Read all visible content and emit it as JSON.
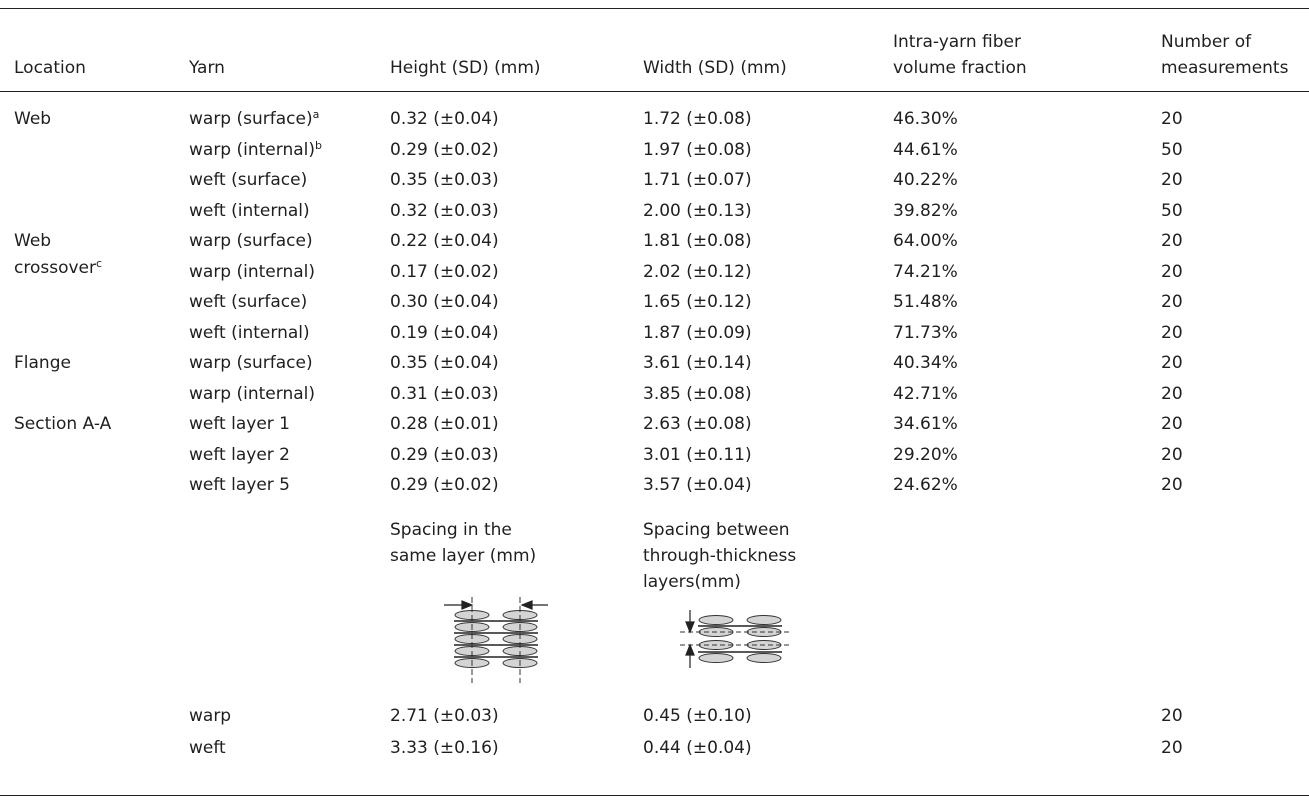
{
  "table": {
    "headers": {
      "location": "Location",
      "yarn": "Yarn",
      "height": "Height (SD) (mm)",
      "width": "Width (SD) (mm)",
      "vf_line1": "Intra-yarn fiber",
      "vf_line2": "volume fraction",
      "n_line1": "Number of",
      "n_line2": "measurements"
    },
    "groups": [
      {
        "location": "Web",
        "location_line2": "",
        "location_sup": "",
        "rows": [
          {
            "yarn": "warp (surface)",
            "sup": "a",
            "height": "0.32 (±0.04)",
            "width": "1.72 (±0.08)",
            "vf": "46.30%",
            "n": "20"
          },
          {
            "yarn": "warp (internal)",
            "sup": "b",
            "height": "0.29 (±0.02)",
            "width": "1.97 (±0.08)",
            "vf": "44.61%",
            "n": "50"
          },
          {
            "yarn": "weft (surface)",
            "sup": "",
            "height": "0.35 (±0.03)",
            "width": "1.71 (±0.07)",
            "vf": "40.22%",
            "n": "20"
          },
          {
            "yarn": "weft (internal)",
            "sup": "",
            "height": "0.32 (±0.03)",
            "width": "2.00 (±0.13)",
            "vf": "39.82%",
            "n": "50"
          }
        ]
      },
      {
        "location": "Web",
        "location_line2": "crossover",
        "location_sup": "c",
        "rows": [
          {
            "yarn": "warp (surface)",
            "sup": "",
            "height": "0.22 (±0.04)",
            "width": "1.81 (±0.08)",
            "vf": "64.00%",
            "n": "20"
          },
          {
            "yarn": "warp (internal)",
            "sup": "",
            "height": "0.17 (±0.02)",
            "width": "2.02 (±0.12)",
            "vf": "74.21%",
            "n": "20"
          },
          {
            "yarn": "weft (surface)",
            "sup": "",
            "height": "0.30 (±0.04)",
            "width": "1.65 (±0.12)",
            "vf": "51.48%",
            "n": "20"
          },
          {
            "yarn": "weft (internal)",
            "sup": "",
            "height": "0.19 (±0.04)",
            "width": "1.87 (±0.09)",
            "vf": "71.73%",
            "n": "20"
          }
        ]
      },
      {
        "location": "Flange",
        "location_line2": "",
        "location_sup": "",
        "rows": [
          {
            "yarn": "warp (surface)",
            "sup": "",
            "height": "0.35 (±0.04)",
            "width": "3.61 (±0.14)",
            "vf": "40.34%",
            "n": "20"
          },
          {
            "yarn": "warp (internal)",
            "sup": "",
            "height": "0.31 (±0.03)",
            "width": "3.85 (±0.08)",
            "vf": "42.71%",
            "n": "20"
          }
        ]
      },
      {
        "location": "Section A-A",
        "location_line2": "",
        "location_sup": "",
        "rows": [
          {
            "yarn": "weft layer 1",
            "sup": "",
            "height": "0.28 (±0.01)",
            "width": "2.63 (±0.08)",
            "vf": "34.61%",
            "n": "20"
          },
          {
            "yarn": "weft layer 2",
            "sup": "",
            "height": "0.29 (±0.03)",
            "width": "3.01 (±0.11)",
            "vf": "29.20%",
            "n": "20"
          },
          {
            "yarn": "weft layer 5",
            "sup": "",
            "height": "0.29 (±0.02)",
            "width": "3.57 (±0.04)",
            "vf": "24.62%",
            "n": "20"
          }
        ]
      }
    ],
    "spacing": {
      "col1_lines": [
        "Spacing in the",
        "same layer (mm)"
      ],
      "col2_lines": [
        "Spacing between",
        "through-thickness",
        "layers(mm)"
      ],
      "rows": [
        {
          "yarn": "warp",
          "same_layer": "2.71 (±0.03)",
          "between_layers": "0.45 (±0.10)",
          "n": "20"
        },
        {
          "yarn": "weft",
          "same_layer": "3.33 (±0.16)",
          "between_layers": "0.44 (±0.04)",
          "n": "20"
        }
      ]
    }
  },
  "colors": {
    "ellipse_fill": "#d4d4d4",
    "stroke": "#333333"
  }
}
